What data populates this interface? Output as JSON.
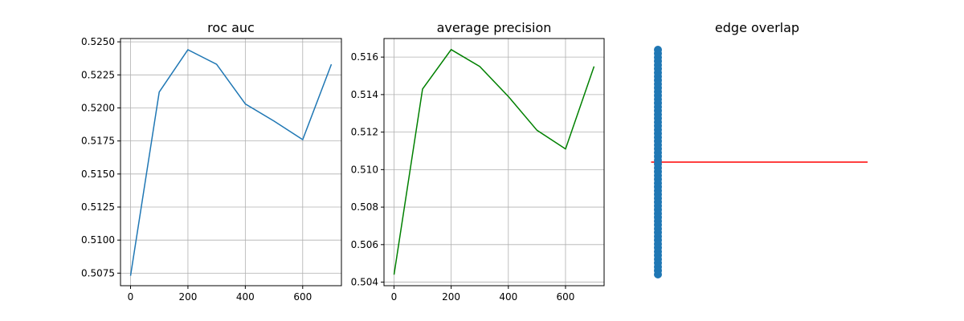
{
  "figure": {
    "background": "#ffffff"
  },
  "chart_data": [
    {
      "type": "line",
      "title": "roc auc",
      "xlabel": "",
      "ylabel": "",
      "grid": true,
      "color": "#1f77b4",
      "xlim": [
        -35,
        735
      ],
      "ylim": [
        0.50655,
        0.52525
      ],
      "xticks": [
        0,
        200,
        400,
        600
      ],
      "xtick_labels": [
        "0",
        "200",
        "400",
        "600"
      ],
      "yticks": [
        0.5075,
        0.51,
        0.5125,
        0.515,
        0.5175,
        0.52,
        0.5225,
        0.525
      ],
      "ytick_labels": [
        "0.5075",
        "0.5100",
        "0.5125",
        "0.5150",
        "0.5175",
        "0.5200",
        "0.5225",
        "0.5250"
      ],
      "x": [
        0,
        100,
        200,
        300,
        400,
        500,
        600,
        700
      ],
      "y": [
        0.5073,
        0.5212,
        0.5244,
        0.5233,
        0.5203,
        0.519,
        0.5176,
        0.5233
      ]
    },
    {
      "type": "line",
      "title": "average precision",
      "xlabel": "",
      "ylabel": "",
      "grid": true,
      "color": "#008000",
      "xlim": [
        -35,
        735
      ],
      "ylim": [
        0.50381,
        0.51699
      ],
      "xticks": [
        0,
        200,
        400,
        600
      ],
      "xtick_labels": [
        "0",
        "200",
        "400",
        "600"
      ],
      "yticks": [
        0.504,
        0.506,
        0.508,
        0.51,
        0.512,
        0.514,
        0.516
      ],
      "ytick_labels": [
        "0.504",
        "0.506",
        "0.508",
        "0.510",
        "0.512",
        "0.514",
        "0.516"
      ],
      "x": [
        0,
        100,
        200,
        300,
        400,
        500,
        600,
        700
      ],
      "y": [
        0.5044,
        0.5143,
        0.5164,
        0.5155,
        0.5139,
        0.5121,
        0.5111,
        0.5155
      ]
    },
    {
      "type": "scatter",
      "title": "edge overlap",
      "xlabel": "",
      "ylabel": "",
      "grid": false,
      "axes_visible": false,
      "point_color": "#1f77b4",
      "line_color": "#ff0000",
      "xlim": [
        0,
        1
      ],
      "ylim": [
        -0.05,
        1.05
      ],
      "points_x": 0,
      "points_y_range": [
        0,
        1
      ],
      "points_count": 60,
      "line_x": [
        0.02,
        1
      ],
      "line_y": [
        0.5,
        0.5
      ]
    }
  ]
}
